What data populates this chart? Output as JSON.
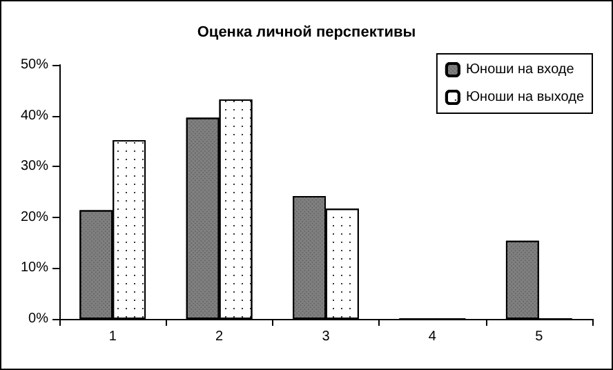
{
  "chart_data": {
    "type": "bar",
    "title": "Оценка личной перспективы",
    "categories": [
      "1",
      "2",
      "3",
      "4",
      "5"
    ],
    "series": [
      {
        "name": "Юноши на входе",
        "color": "#808080",
        "values": [
          21.4,
          39.6,
          24.2,
          0,
          15.4
        ]
      },
      {
        "name": "Юноши на выходе",
        "color": "#ffffff",
        "values": [
          35.2,
          43.2,
          21.7,
          0,
          0
        ]
      }
    ],
    "ylim": [
      0,
      50
    ],
    "yticks": [
      {
        "value": 0,
        "label": "0%"
      },
      {
        "value": 10,
        "label": "10%"
      },
      {
        "value": 20,
        "label": "20%"
      },
      {
        "value": 30,
        "label": "30%"
      },
      {
        "value": 40,
        "label": "40%"
      },
      {
        "value": 50,
        "label": "50%"
      }
    ],
    "grid": false,
    "legend": "top right"
  }
}
